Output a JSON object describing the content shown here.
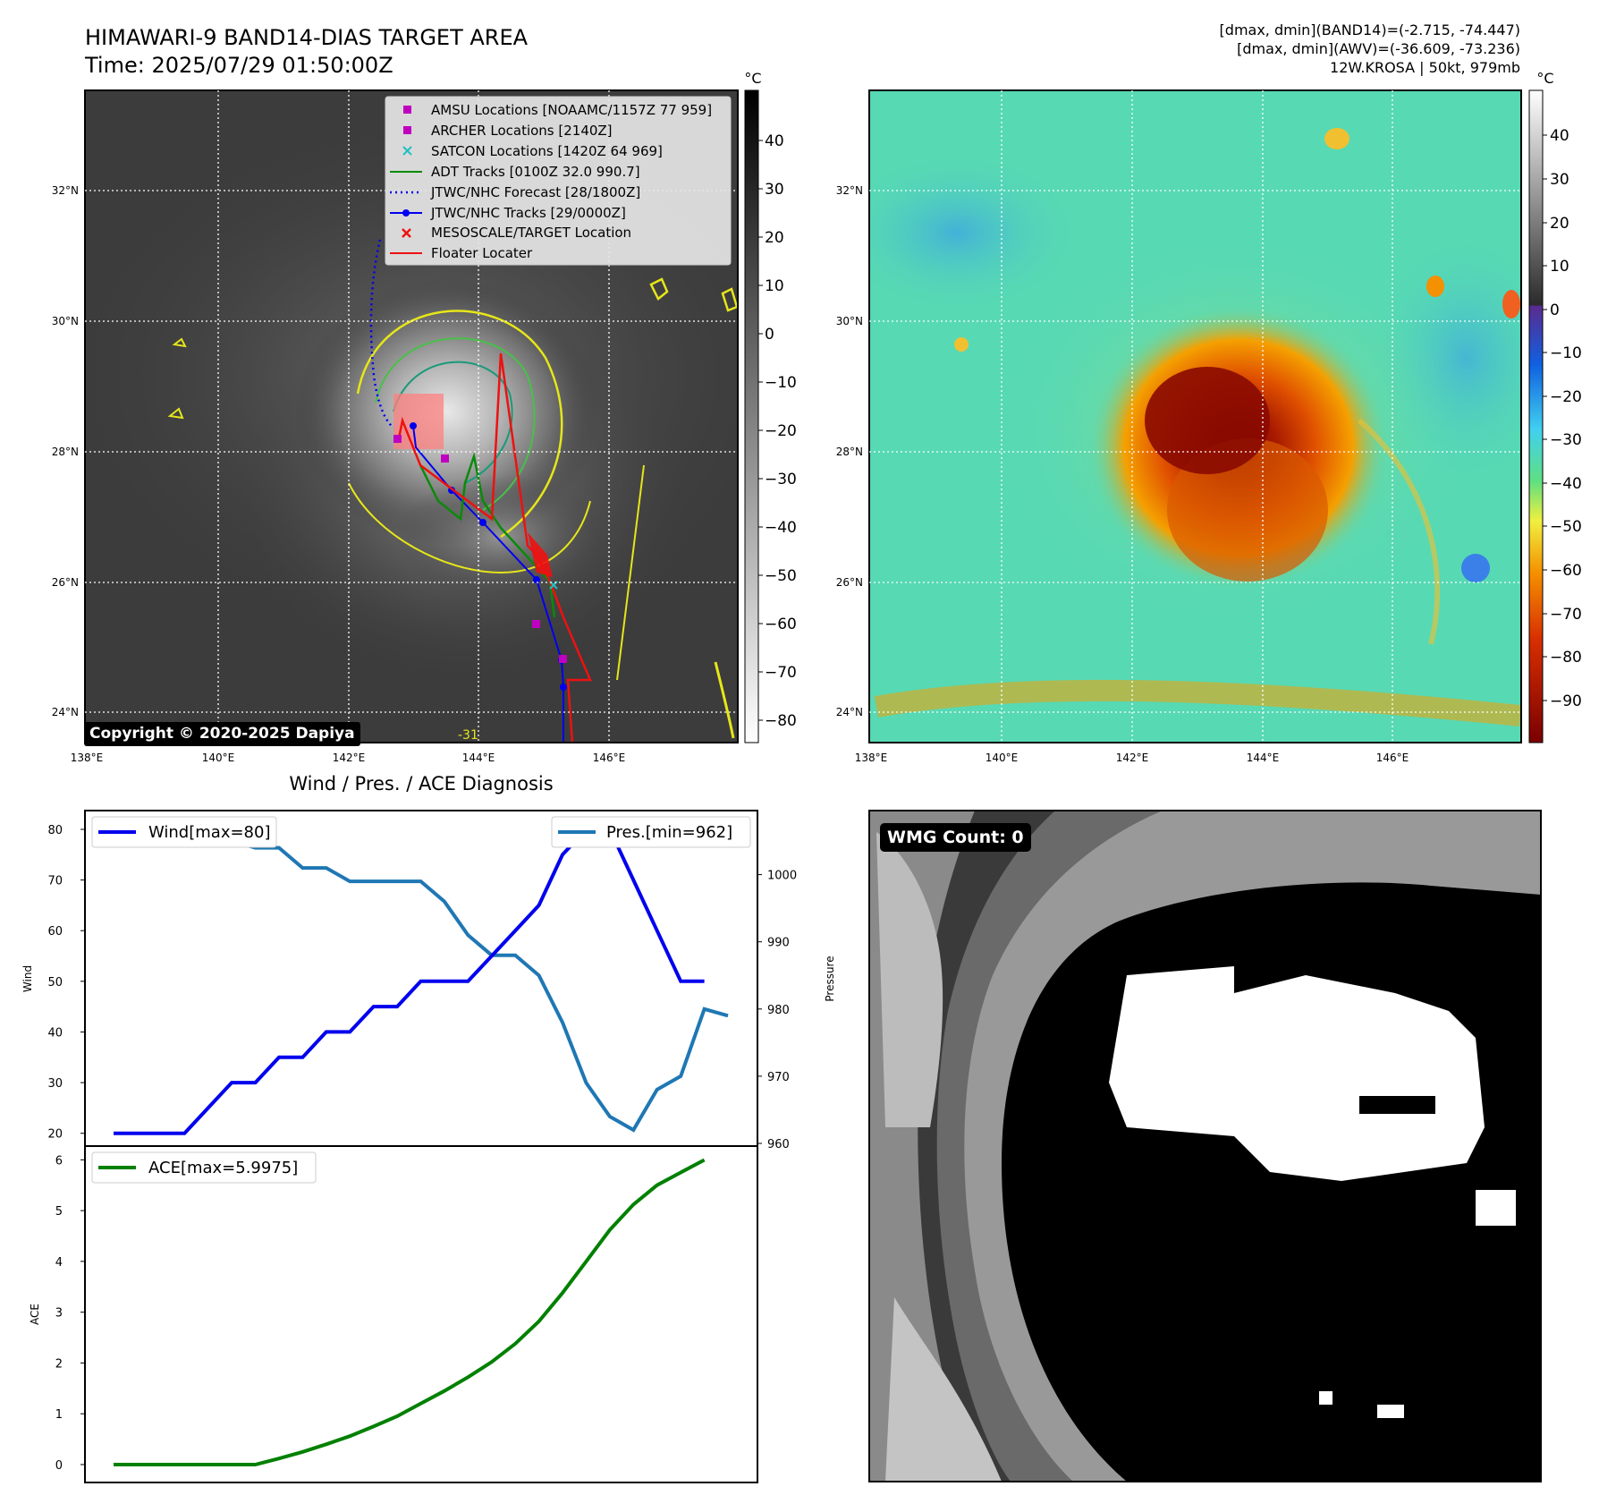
{
  "header": {
    "title_line1": "HIMAWARI-9 BAND14-DIAS TARGET AREA",
    "title_line2": "Time: 2025/07/29 01:50:00Z",
    "info_line1": "[dmax, dmin](BAND14)=(-2.715, -74.447)",
    "info_line2": "[dmax, dmin](AWV)=(-36.609, -73.236)",
    "info_line3": "12W.KROSA | 50kt, 979mb"
  },
  "colors": {
    "gray_bg": "#3c3c3c",
    "awv_bg": "#57d9b4",
    "wind": "#0000ee",
    "pressure": "#1f77b4",
    "ace": "#008000",
    "track_red": "#ee1111",
    "adt_green": "#0a8a0a"
  },
  "map": {
    "lon_labels": [
      "138°E",
      "140°E",
      "142°E",
      "144°E",
      "146°E"
    ],
    "lat_labels": [
      "32°N",
      "30°N",
      "28°N",
      "26°N",
      "24°N"
    ],
    "contour_label": "-31",
    "copyright": "Copyright © 2020-2025 Dapiya"
  },
  "legend": {
    "items": [
      {
        "label": "AMSU Locations [NOAAMC/1157Z 77 959]",
        "icon": "square-marker",
        "color": "#c000c0"
      },
      {
        "label": "ARCHER Locations [2140Z]",
        "icon": "square-marker",
        "color": "#c000c0"
      },
      {
        "label": "SATCON Locations [1420Z 64 969]",
        "icon": "x-marker",
        "color": "#20c0c0"
      },
      {
        "label": "ADT Tracks [0100Z 32.0 990.7]",
        "icon": "solid-line",
        "color": "#0a8a0a"
      },
      {
        "label": "JTWC/NHC Forecast [28/1800Z]",
        "icon": "dotted-line",
        "color": "#0000ee"
      },
      {
        "label": "JTWC/NHC Tracks [29/0000Z]",
        "icon": "line-dot",
        "color": "#0000ee"
      },
      {
        "label": "MESOSCALE/TARGET Location",
        "icon": "x-marker",
        "color": "#ee1111"
      },
      {
        "label": "Floater Locater",
        "icon": "solid-line",
        "color": "#ee1111"
      }
    ]
  },
  "colorbar_left": {
    "unit": "°C",
    "ticks": [
      "40",
      "30",
      "20",
      "10",
      "0",
      "−10",
      "−20",
      "−30",
      "−40",
      "−50",
      "−60",
      "−70",
      "−80"
    ]
  },
  "colorbar_right": {
    "unit": "°C",
    "ticks": [
      "40",
      "30",
      "20",
      "10",
      "0",
      "−10",
      "−20",
      "−30",
      "−40",
      "−50",
      "−60",
      "−70",
      "−80",
      "−90"
    ]
  },
  "chart_data": {
    "type": "line",
    "title": "Wind / Pres. / ACE Diagnosis",
    "x_index": [
      0,
      1,
      2,
      3,
      4,
      5,
      6,
      7,
      8,
      9,
      10,
      11,
      12,
      13,
      14,
      15,
      16,
      17,
      18,
      19,
      20,
      21,
      22,
      23,
      24,
      25,
      26
    ],
    "wind": {
      "name": "Wind[max=80]",
      "ylabel": "Wind",
      "ylim": [
        18,
        83
      ],
      "ticks": [
        "80",
        "70",
        "60",
        "50",
        "40",
        "30",
        "20"
      ],
      "tick_values": [
        80,
        70,
        60,
        50,
        40,
        30,
        20
      ],
      "values": [
        20,
        20,
        20,
        20,
        25,
        30,
        30,
        35,
        35,
        40,
        40,
        45,
        45,
        50,
        50,
        50,
        55,
        60,
        65,
        75,
        80,
        80,
        70,
        60,
        50,
        50,
        null
      ]
    },
    "pressure": {
      "name": "Pres.[min=962]",
      "ylabel": "Pressure",
      "ylim": [
        960,
        1009
      ],
      "ticks": [
        "1000",
        "990",
        "980",
        "970",
        "960"
      ],
      "tick_values": [
        1000,
        990,
        980,
        970,
        960
      ],
      "values": [
        1007,
        1007,
        1007,
        1007,
        1005,
        1005,
        1004,
        1004,
        1001,
        1001,
        999,
        999,
        999,
        999,
        996,
        991,
        988,
        988,
        985,
        978,
        969,
        964,
        962,
        968,
        970,
        980,
        979
      ]
    },
    "ace": {
      "name": "ACE[max=5.9975]",
      "ylabel": "ACE",
      "ylim": [
        -0.3,
        6.2
      ],
      "ticks": [
        "6",
        "5",
        "4",
        "3",
        "2",
        "1",
        "0"
      ],
      "tick_values": [
        6,
        5,
        4,
        3,
        2,
        1,
        0
      ],
      "values": [
        0,
        0,
        0,
        0,
        0,
        0,
        0,
        0.12,
        0.25,
        0.4,
        0.56,
        0.75,
        0.95,
        1.2,
        1.45,
        1.72,
        2.02,
        2.38,
        2.82,
        3.38,
        4.0,
        4.62,
        5.12,
        5.5,
        5.75,
        5.9975,
        null
      ]
    }
  },
  "wmg": {
    "label": "WMG Count: 0"
  }
}
